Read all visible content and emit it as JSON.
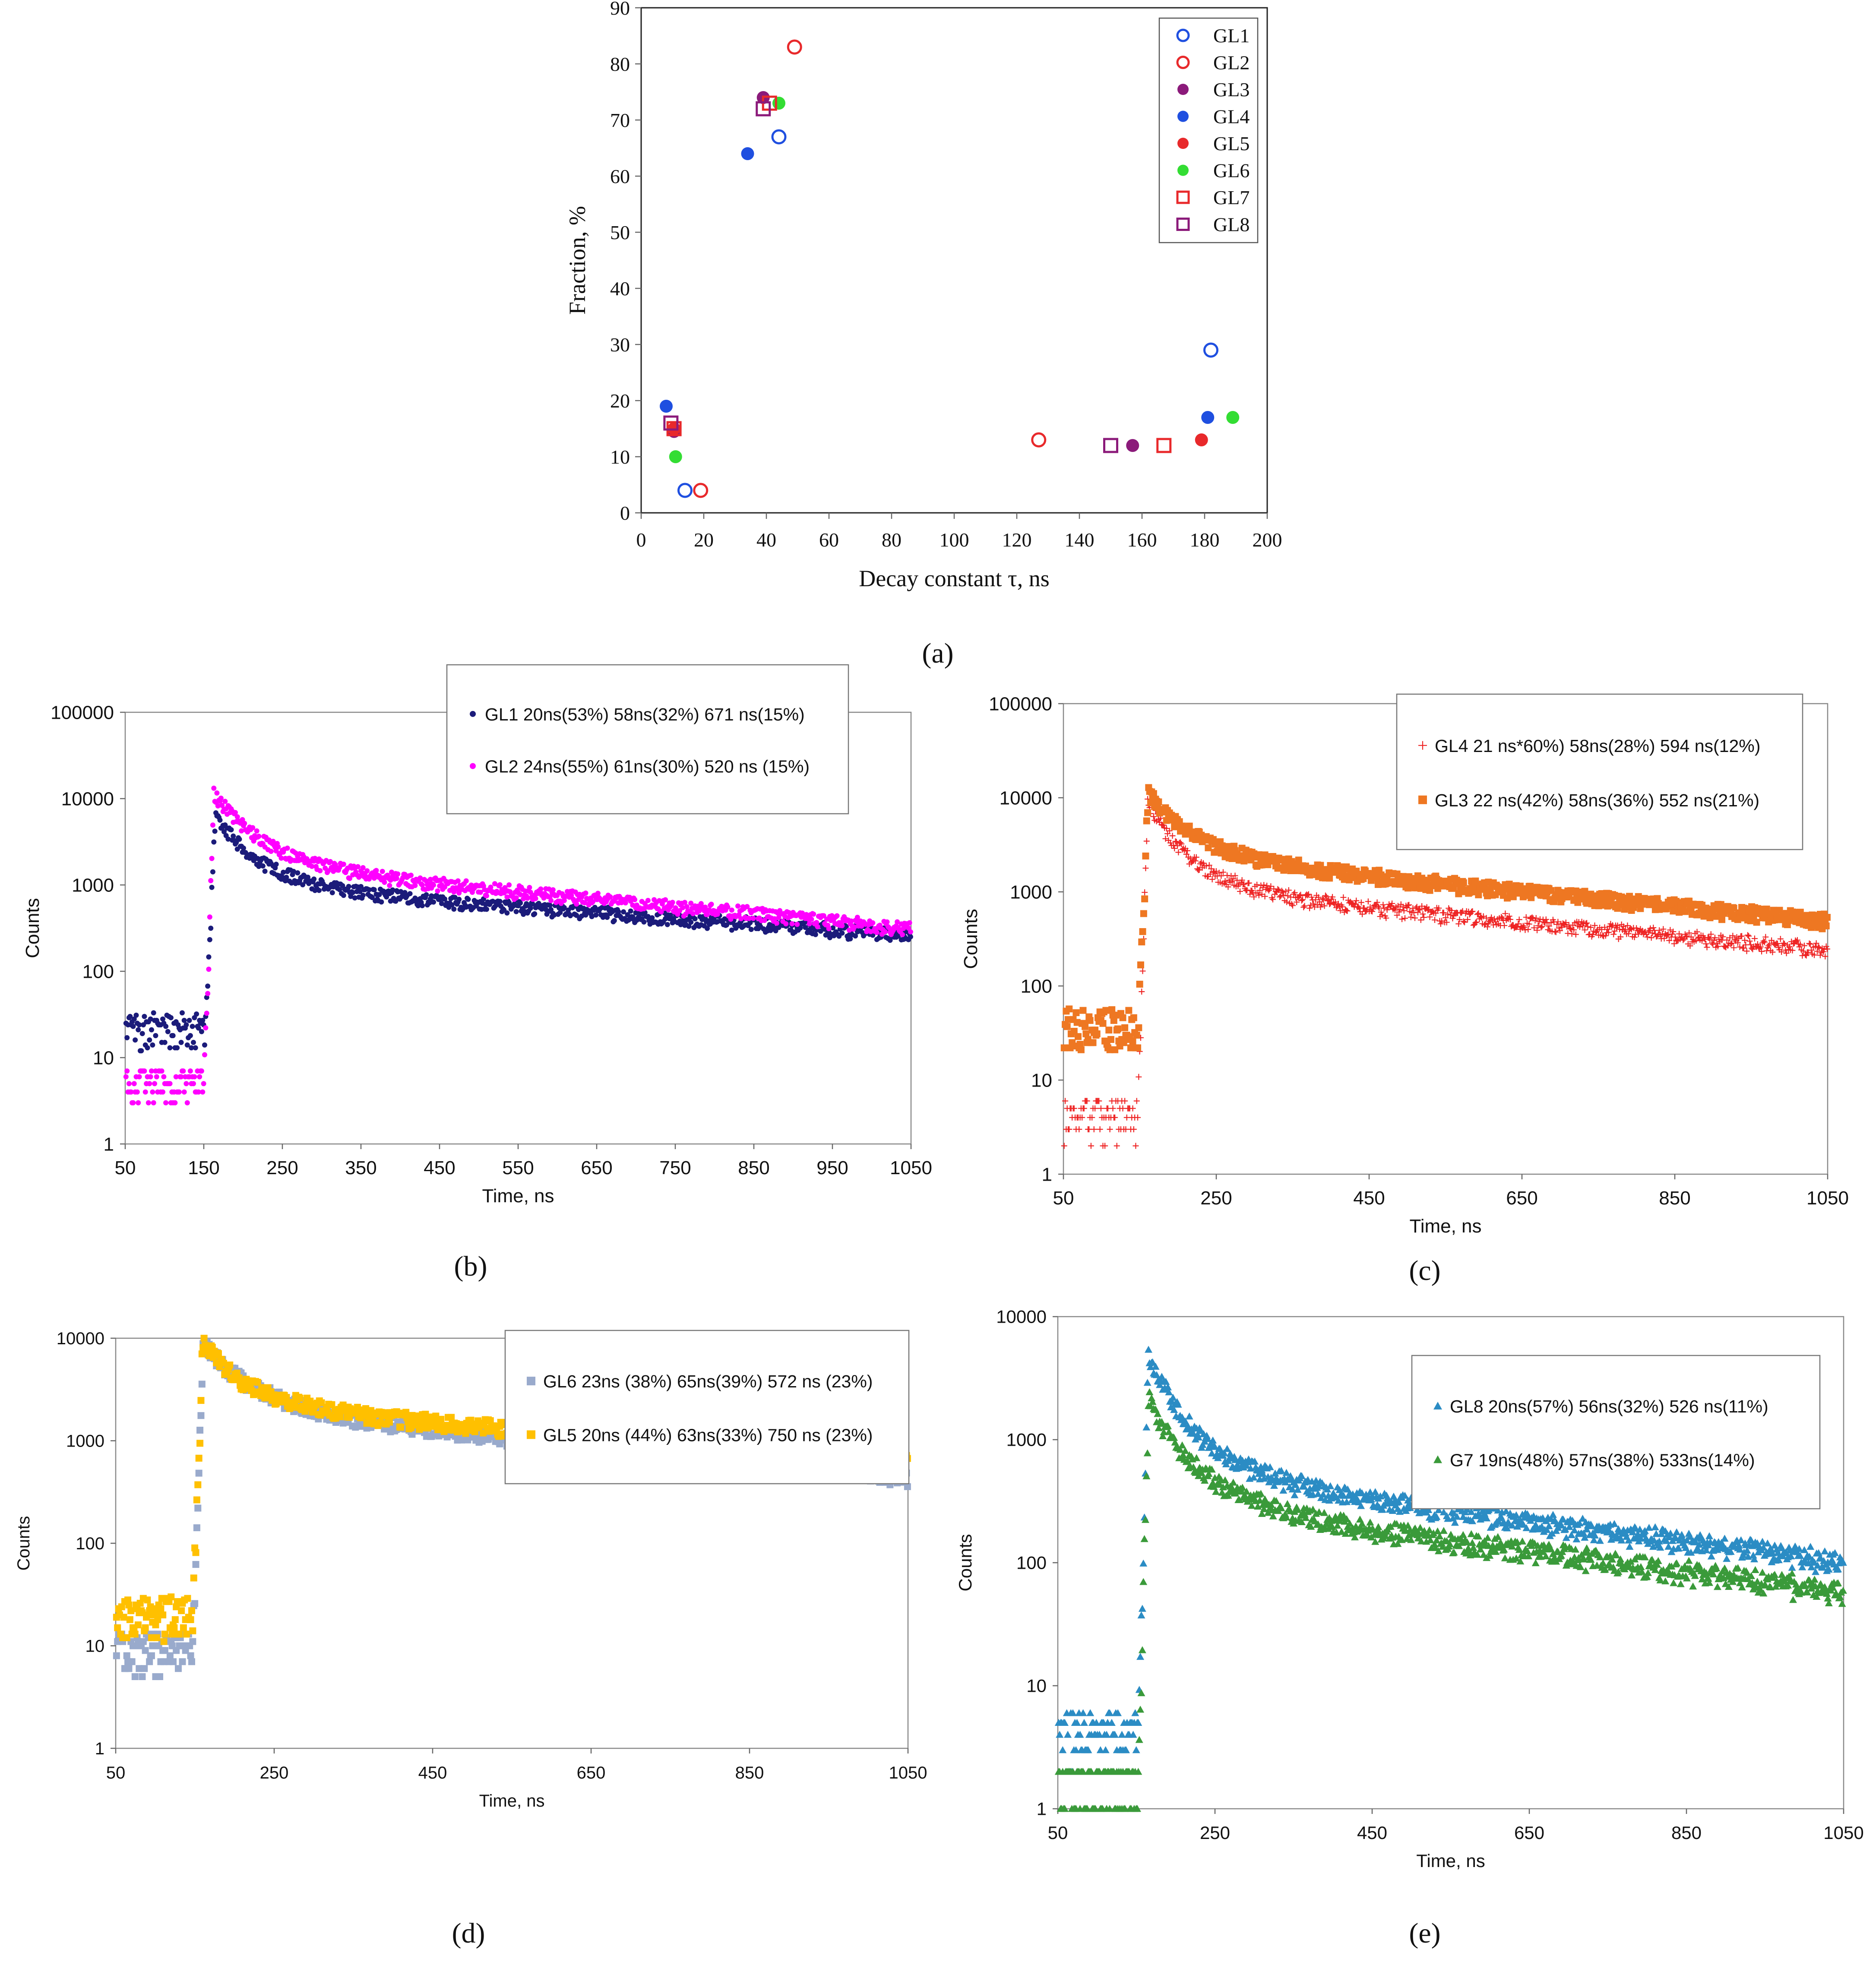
{
  "chart_data": [
    {
      "type": "scatter",
      "panel_label": "(a)",
      "xlabel": "Decay constant τ, ns",
      "ylabel": "Fraction, %",
      "xlim": [
        0,
        200
      ],
      "ylim": [
        0,
        90
      ],
      "x_ticks": [
        0,
        20,
        40,
        60,
        80,
        100,
        120,
        140,
        160,
        180,
        200
      ],
      "y_ticks": [
        0,
        10,
        20,
        30,
        40,
        50,
        60,
        70,
        80,
        90
      ],
      "legend_position": "top-right",
      "series": [
        {
          "name": "GL1",
          "color": "#1f4fe0",
          "marker": "circle-open",
          "points": [
            [
              14,
              4
            ],
            [
              44,
              67
            ],
            [
              182,
              29
            ]
          ]
        },
        {
          "name": "GL2",
          "color": "#e8292b",
          "marker": "circle-open",
          "points": [
            [
              19,
              4
            ],
            [
              49,
              83
            ],
            [
              127,
              13
            ]
          ]
        },
        {
          "name": "GL3",
          "color": "#8b1a7a",
          "marker": "circle-filled",
          "points": [
            [
              10.5,
              14.5
            ],
            [
              39,
              74
            ],
            [
              157,
              12
            ]
          ]
        },
        {
          "name": "GL4",
          "color": "#1f4fe0",
          "marker": "circle-filled",
          "points": [
            [
              8,
              19
            ],
            [
              34,
              64
            ],
            [
              181,
              17
            ]
          ]
        },
        {
          "name": "GL5",
          "color": "#e8292b",
          "marker": "circle-filled",
          "points": [
            [
              10.5,
              15
            ],
            [
              179,
              13
            ]
          ]
        },
        {
          "name": "GL6",
          "color": "#33dd33",
          "marker": "circle-filled",
          "points": [
            [
              11,
              10
            ],
            [
              44,
              73
            ],
            [
              189,
              17
            ]
          ]
        },
        {
          "name": "GL7",
          "color": "#e8292b",
          "marker": "square-open",
          "points": [
            [
              10.5,
              15
            ],
            [
              41,
              73
            ],
            [
              167,
              12
            ]
          ]
        },
        {
          "name": "GL8",
          "color": "#8b1a7a",
          "marker": "square-open",
          "points": [
            [
              9.5,
              16
            ],
            [
              39,
              72
            ],
            [
              150,
              12
            ]
          ]
        }
      ]
    },
    {
      "type": "scatter",
      "panel_label": "(b)",
      "xlabel": "Time, ns",
      "ylabel": "Counts",
      "x_ticks": [
        50,
        150,
        250,
        350,
        450,
        550,
        650,
        750,
        850,
        950,
        1050
      ],
      "y_ticks": [
        "1",
        "10",
        "100",
        "1000",
        "10000",
        "100000"
      ],
      "xlim": [
        50,
        1050
      ],
      "ylim": [
        1,
        100000
      ],
      "y_scale": "log",
      "legend_position": "top-right",
      "series": [
        {
          "name": "GL1 20ns(53%) 58ns(32%) 671 ns(15%)",
          "color": "#1b1b7a",
          "marker": "dot",
          "peak_time": 165,
          "peak": 6500,
          "baseline_before": 22,
          "amplitudes": [
            0.53,
            0.32,
            0.15
          ],
          "taus": [
            20,
            58,
            671
          ]
        },
        {
          "name": "GL2 24ns(55%) 61ns(30%) 520 ns (15%)",
          "color": "#ff00ff",
          "marker": "dot",
          "peak_time": 163,
          "peak": 11500,
          "baseline_before": 5,
          "amplitudes": [
            0.55,
            0.3,
            0.15
          ],
          "taus": [
            24,
            61,
            520
          ]
        }
      ]
    },
    {
      "type": "scatter",
      "panel_label": "(c)",
      "xlabel": "Time, ns",
      "ylabel": "Counts",
      "x_ticks": [
        50,
        250,
        450,
        650,
        850,
        1050
      ],
      "y_ticks": [
        "1",
        "10",
        "100",
        "1000",
        "10000",
        "100000"
      ],
      "xlim": [
        50,
        1050
      ],
      "ylim": [
        1,
        100000
      ],
      "y_scale": "log",
      "legend_position": "top-right",
      "series": [
        {
          "name": "GL4 21 ns*60%) 58ns(28%) 594 ns(12%)",
          "color": "#ee2222",
          "marker": "plus",
          "peak_time": 160,
          "peak": 9000,
          "baseline_before": 4,
          "amplitudes": [
            0.6,
            0.28,
            0.12
          ],
          "taus": [
            21,
            58,
            594
          ]
        },
        {
          "name": "GL3 22 ns(42%) 58ns(36%) 552 ns(21%)",
          "color": "#ee7722",
          "marker": "square",
          "peak_time": 161,
          "peak": 11500,
          "baseline_before": 38,
          "amplitudes": [
            0.42,
            0.36,
            0.21
          ],
          "taus": [
            22,
            58,
            552
          ]
        }
      ]
    },
    {
      "type": "scatter",
      "panel_label": "(d)",
      "xlabel": "Time, ns",
      "ylabel": "Counts",
      "x_ticks": [
        50,
        250,
        450,
        650,
        850,
        1050
      ],
      "y_ticks": [
        "1",
        "10",
        "100",
        "1000",
        "10000"
      ],
      "xlim": [
        50,
        1050
      ],
      "ylim": [
        1,
        10000
      ],
      "y_scale": "log",
      "legend_position": "top-right",
      "series": [
        {
          "name": "GL6 23ns (38%) 65ns(39%) 572 ns (23%)",
          "color": "#99aacc",
          "marker": "square",
          "peak_time": 160,
          "peak": 9000,
          "baseline_before": 9,
          "amplitudes": [
            0.38,
            0.39,
            0.23
          ],
          "taus": [
            23,
            65,
            572
          ]
        },
        {
          "name": "GL5 20ns (44%) 63ns(33%) 750 ns (23%)",
          "color": "#ffc000",
          "marker": "square",
          "peak_time": 160,
          "peak": 9500,
          "baseline_before": 20,
          "amplitudes": [
            0.44,
            0.33,
            0.23
          ],
          "taus": [
            20,
            63,
            750
          ]
        }
      ]
    },
    {
      "type": "scatter",
      "panel_label": "(e)",
      "xlabel": "Time, ns",
      "ylabel": "Counts",
      "x_ticks": [
        50,
        250,
        450,
        650,
        850,
        1050
      ],
      "y_ticks": [
        "1",
        "10",
        "100",
        "1000",
        "10000"
      ],
      "xlim": [
        50,
        1050
      ],
      "ylim": [
        1,
        10000
      ],
      "y_scale": "log",
      "legend_position": "top-right",
      "series": [
        {
          "name": "GL8 20ns(57%) 56ns(32%) 526 ns(11%)",
          "color": "#2b8cc4",
          "marker": "triangle",
          "peak_time": 165,
          "peak": 5000,
          "baseline_before": 4,
          "amplitudes": [
            0.57,
            0.32,
            0.11
          ],
          "taus": [
            20,
            56,
            526
          ]
        },
        {
          "name": "G7 19ns(48%) 57ns(38%) 533ns(14%)",
          "color": "#3a9a3a",
          "marker": "triangle",
          "peak_time": 165,
          "peak": 2200,
          "baseline_before": 1.5,
          "amplitudes": [
            0.48,
            0.38,
            0.14
          ],
          "taus": [
            19,
            57,
            533
          ]
        }
      ]
    }
  ]
}
